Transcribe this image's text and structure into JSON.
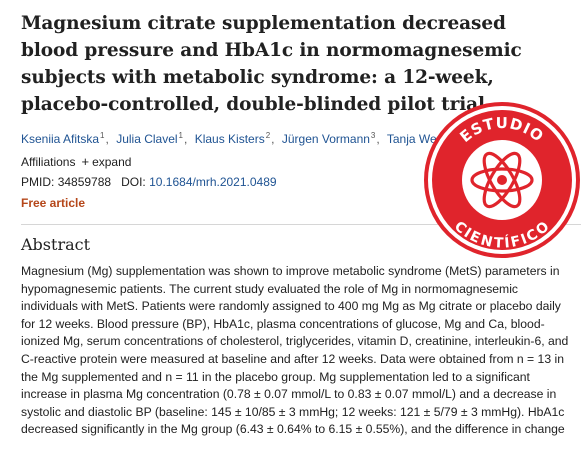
{
  "article": {
    "title": "Magnesium citrate supplementation decreased blood pressure and HbA1c in normomagnesemic subjects with metabolic syndrome: a 12-week, placebo-controlled, double-blinded pilot trial",
    "authors": [
      {
        "name": "Kseniia Afitska",
        "aff": "1"
      },
      {
        "name": "Julia Clavel",
        "aff": "1"
      },
      {
        "name": "Klaus Kisters",
        "aff": "2"
      },
      {
        "name": "Jürgen Vormann",
        "aff": "3"
      },
      {
        "name": "Tanja Werner",
        "aff": "1"
      }
    ],
    "affiliations_label": "Affiliations",
    "expand_label": "expand",
    "pmid_label": "PMID:",
    "pmid": "34859788",
    "doi_label": "DOI:",
    "doi": "10.1684/mrh.2021.0489",
    "free_label": "Free article",
    "abstract_heading": "Abstract",
    "abstract": "Magnesium (Mg) supplementation was shown to improve metabolic syndrome (MetS) parameters in hypomagnesemic patients. The current study evaluated the role of Mg in normomagnesemic individuals with MetS. Patients were randomly assigned to 400 mg Mg as Mg citrate or placebo daily for 12 weeks. Blood pressure (BP), HbA1c, plasma concentrations of glucose, Mg and Ca, blood-ionized Mg, serum concentrations of cholesterol, triglycerides, vitamin D, creatinine, interleukin-6, and C-reactive protein were measured at baseline and after 12 weeks. Data were obtained from n = 13 in the Mg supplemented and n = 11 in the placebo group. Mg supplementation led to a significant increase in plasma Mg concentration (0.78 ± 0.07 mmol/L to 0.83 ± 0.07 mmol/L) and a decrease in systolic and diastolic BP (baseline: 145 ± 10/85 ± 3 mmHg; 12 weeks: 121 ± 5/79 ± 3 mmHg). HbA1c decreased significantly in the Mg group (6.43 ± 0.64% to 6.15 ± 0.55%), and the difference in change"
  },
  "stamp": {
    "text_top": "ESTUDIO",
    "text_bottom": "CIENTÍFICO",
    "color": "#e0242c",
    "icon": "atom-icon"
  }
}
